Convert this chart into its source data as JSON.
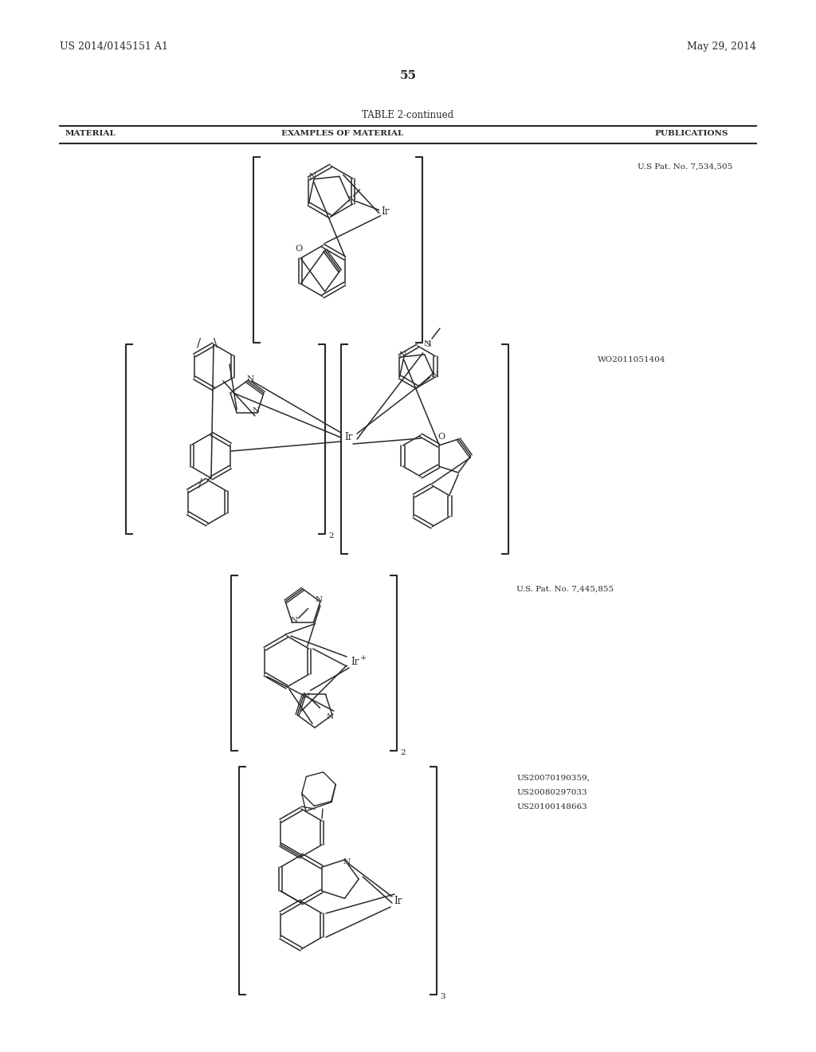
{
  "background_color": "#ffffff",
  "header_left": "US 2014/0145151 A1",
  "header_right": "May 29, 2014",
  "page_number": "55",
  "table_title": "TABLE 2-continued",
  "col1_label": "MATERIAL",
  "col2_label": "EXAMPLES OF MATERIAL",
  "col3_label": "PUBLICATIONS",
  "pub1": "U.S Pat. No. 7,534,505",
  "pub2": "WO2011051404",
  "pub3": "U.S. Pat. No. 7,445,855",
  "pub4_line1": "US20070190359,",
  "pub4_line2": "US20080297033",
  "pub4_line3": "US20100148663",
  "text_color": "#2a2a2a",
  "line_color": "#2a2a2a"
}
